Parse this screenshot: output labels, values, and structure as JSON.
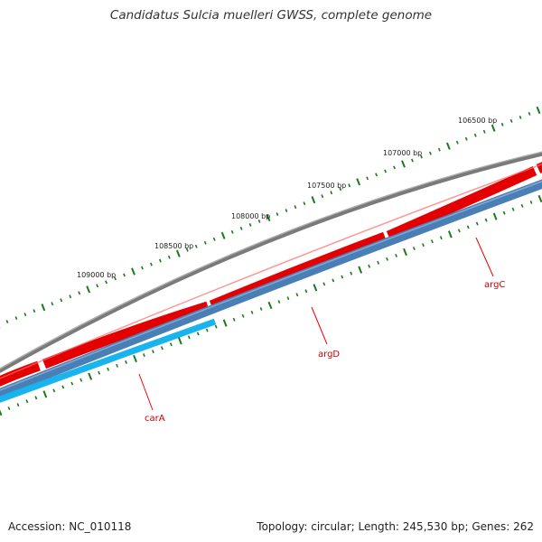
{
  "title": "Candidatus Sulcia muelleri GWSS, complete genome",
  "footer": {
    "accession": "Accession: NC_010118",
    "summary": "Topology: circular; Length: 245,530 bp; Genes: 262"
  },
  "ruler": {
    "labels": [
      "106500 bp",
      "107000 bp",
      "107500 bp",
      "108000 bp",
      "108500 bp",
      "109000 bp"
    ]
  },
  "genes": [
    {
      "name": "argC",
      "color": "#cc0000"
    },
    {
      "name": "argD",
      "color": "#cc0000"
    },
    {
      "name": "carA",
      "color": "#cc0000"
    }
  ],
  "colors": {
    "backbone": "#7a7a7a",
    "forward_cds": "#ee0000",
    "reverse_cds": "#4a7fb5",
    "highlight_cds": "#1ab4ee",
    "ticks": "#1a7a1a"
  }
}
